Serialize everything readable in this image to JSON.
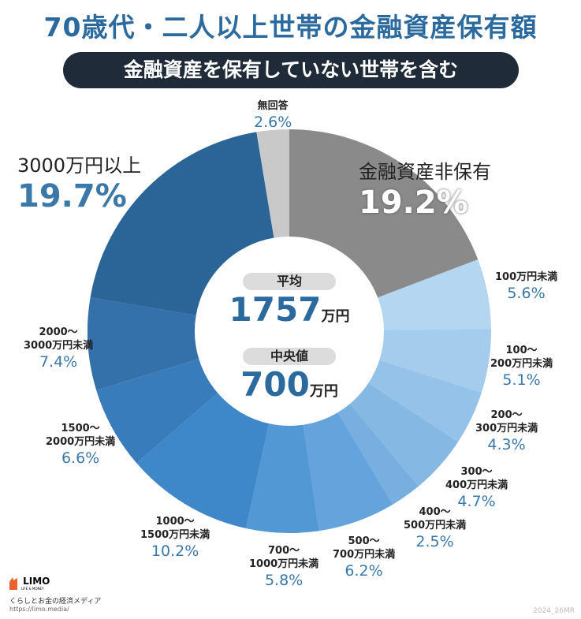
{
  "title": "70歳代・二人以上世帯の金融資産保有額",
  "subtitle": "金融資産を保有していない世帯を含む",
  "center": {
    "mean_label": "平均",
    "mean_value": "1757",
    "mean_unit": "万円",
    "median_label": "中央値",
    "median_value": "700",
    "median_unit": "万円"
  },
  "chart_data": {
    "type": "pie",
    "donut": true,
    "start": "top, clockwise",
    "slices": [
      {
        "label": "金融資産非保有",
        "value": 19.2,
        "pct": "19.2%",
        "color": "#8a8a8a"
      },
      {
        "label": "100万円未満",
        "value": 5.6,
        "pct": "5.6%",
        "color": "#b5d6f1"
      },
      {
        "label": "100〜\n200万円未満",
        "value": 5.1,
        "pct": "5.1%",
        "color": "#a4ccec"
      },
      {
        "label": "200〜\n300万円未満",
        "value": 4.3,
        "pct": "4.3%",
        "color": "#94c2e8"
      },
      {
        "label": "300〜\n400万円未満",
        "value": 4.7,
        "pct": "4.7%",
        "color": "#85b9e4"
      },
      {
        "label": "400〜\n500万円未満",
        "value": 2.5,
        "pct": "2.5%",
        "color": "#76afe0"
      },
      {
        "label": "500〜\n700万円未満",
        "value": 6.2,
        "pct": "6.2%",
        "color": "#64a3db"
      },
      {
        "label": "700〜\n1000万円未満",
        "value": 5.8,
        "pct": "5.8%",
        "color": "#5298d5"
      },
      {
        "label": "1000〜\n1500万円未満",
        "value": 10.2,
        "pct": "10.2%",
        "color": "#3e87c9"
      },
      {
        "label": "1500〜\n2000万円未満",
        "value": 6.6,
        "pct": "6.6%",
        "color": "#397cbb"
      },
      {
        "label": "2000〜\n3000万円未満",
        "value": 7.4,
        "pct": "7.4%",
        "color": "#3470a9"
      },
      {
        "label": "3000万円以上",
        "value": 19.7,
        "pct": "19.7%",
        "color": "#2b6497"
      },
      {
        "label": "無回答",
        "value": 2.6,
        "pct": "2.6%",
        "color": "#c9c9c9"
      }
    ]
  },
  "footer": {
    "logo": "LIMO",
    "logo_sub": "LIFE & MONEY",
    "tagline": "くらしとお金の経済メディア",
    "url": "https://limo.media/",
    "code": "2024_26MR"
  }
}
